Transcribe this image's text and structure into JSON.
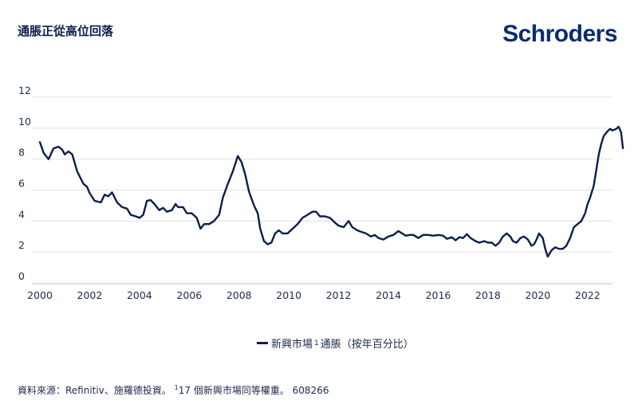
{
  "title": "通脹正從高位回落",
  "logo": "Schroders",
  "legend": {
    "label_before": "新興市場",
    "sup": "1",
    "label_after": "通脹（按年百分比）"
  },
  "source": {
    "before": "資料來源：Refinitiv、施羅德投資。",
    "sup": "1",
    "after": "17 個新興市場同等權重。 608266"
  },
  "colors": {
    "line": "#0b1f4b",
    "grid": "#dcdfe6",
    "text": "#1b2a4a"
  },
  "chart_data": {
    "type": "line",
    "x_tick_labels": [
      "2000",
      "2002",
      "2004",
      "2006",
      "2008",
      "2010",
      "2012",
      "2014",
      "2016",
      "2018",
      "2020",
      "2022"
    ],
    "y_tick_labels": [
      "0",
      "2",
      "4",
      "6",
      "8",
      "10",
      "12"
    ],
    "xlim": [
      2000,
      2023
    ],
    "ylim": [
      0,
      12
    ],
    "grid": true,
    "legend_position": "bottom-center",
    "series": [
      {
        "name": "新興市場 1 通脹（按年百分比）",
        "points": [
          [
            2000.0,
            9.1
          ],
          [
            2000.15,
            8.4
          ],
          [
            2000.35,
            8.0
          ],
          [
            2000.55,
            8.7
          ],
          [
            2000.75,
            8.8
          ],
          [
            2000.9,
            8.6
          ],
          [
            2001.0,
            8.3
          ],
          [
            2001.15,
            8.5
          ],
          [
            2001.3,
            8.3
          ],
          [
            2001.5,
            7.2
          ],
          [
            2001.75,
            6.4
          ],
          [
            2001.9,
            6.2
          ],
          [
            2002.0,
            5.8
          ],
          [
            2002.2,
            5.3
          ],
          [
            2002.45,
            5.2
          ],
          [
            2002.6,
            5.7
          ],
          [
            2002.75,
            5.6
          ],
          [
            2002.9,
            5.85
          ],
          [
            2003.1,
            5.2
          ],
          [
            2003.3,
            4.9
          ],
          [
            2003.5,
            4.8
          ],
          [
            2003.65,
            4.4
          ],
          [
            2003.85,
            4.3
          ],
          [
            2004.0,
            4.2
          ],
          [
            2004.15,
            4.4
          ],
          [
            2004.3,
            5.3
          ],
          [
            2004.45,
            5.35
          ],
          [
            2004.6,
            5.1
          ],
          [
            2004.8,
            4.7
          ],
          [
            2004.95,
            4.85
          ],
          [
            2005.1,
            4.6
          ],
          [
            2005.3,
            4.7
          ],
          [
            2005.45,
            5.1
          ],
          [
            2005.55,
            4.9
          ],
          [
            2005.75,
            4.9
          ],
          [
            2005.9,
            4.5
          ],
          [
            2006.1,
            4.5
          ],
          [
            2006.3,
            4.2
          ],
          [
            2006.45,
            3.5
          ],
          [
            2006.6,
            3.8
          ],
          [
            2006.8,
            3.8
          ],
          [
            2007.0,
            4.0
          ],
          [
            2007.2,
            4.4
          ],
          [
            2007.35,
            5.5
          ],
          [
            2007.55,
            6.4
          ],
          [
            2007.75,
            7.2
          ],
          [
            2007.95,
            8.2
          ],
          [
            2008.1,
            7.8
          ],
          [
            2008.25,
            7.0
          ],
          [
            2008.4,
            5.9
          ],
          [
            2008.6,
            5.0
          ],
          [
            2008.75,
            4.5
          ],
          [
            2008.85,
            3.5
          ],
          [
            2009.0,
            2.7
          ],
          [
            2009.15,
            2.5
          ],
          [
            2009.3,
            2.6
          ],
          [
            2009.45,
            3.2
          ],
          [
            2009.6,
            3.4
          ],
          [
            2009.75,
            3.2
          ],
          [
            2009.95,
            3.2
          ],
          [
            2010.15,
            3.5
          ],
          [
            2010.35,
            3.8
          ],
          [
            2010.55,
            4.2
          ],
          [
            2010.75,
            4.4
          ],
          [
            2010.95,
            4.6
          ],
          [
            2011.1,
            4.6
          ],
          [
            2011.25,
            4.3
          ],
          [
            2011.45,
            4.3
          ],
          [
            2011.65,
            4.2
          ],
          [
            2011.85,
            3.9
          ],
          [
            2012.0,
            3.7
          ],
          [
            2012.2,
            3.6
          ],
          [
            2012.4,
            4.0
          ],
          [
            2012.55,
            3.6
          ],
          [
            2012.75,
            3.4
          ],
          [
            2012.9,
            3.3
          ],
          [
            2013.1,
            3.2
          ],
          [
            2013.3,
            3.0
          ],
          [
            2013.45,
            3.1
          ],
          [
            2013.6,
            2.9
          ],
          [
            2013.8,
            2.8
          ],
          [
            2014.0,
            3.0
          ],
          [
            2014.2,
            3.1
          ],
          [
            2014.4,
            3.35
          ],
          [
            2014.55,
            3.2
          ],
          [
            2014.7,
            3.05
          ],
          [
            2014.85,
            3.1
          ],
          [
            2015.0,
            3.1
          ],
          [
            2015.2,
            2.9
          ],
          [
            2015.4,
            3.1
          ],
          [
            2015.6,
            3.1
          ],
          [
            2015.8,
            3.05
          ],
          [
            2016.0,
            3.1
          ],
          [
            2016.2,
            3.05
          ],
          [
            2016.35,
            2.85
          ],
          [
            2016.55,
            2.95
          ],
          [
            2016.7,
            2.75
          ],
          [
            2016.85,
            2.95
          ],
          [
            2017.0,
            2.9
          ],
          [
            2017.15,
            3.15
          ],
          [
            2017.3,
            2.9
          ],
          [
            2017.5,
            2.7
          ],
          [
            2017.65,
            2.6
          ],
          [
            2017.85,
            2.7
          ],
          [
            2018.0,
            2.6
          ],
          [
            2018.15,
            2.6
          ],
          [
            2018.3,
            2.4
          ],
          [
            2018.45,
            2.6
          ],
          [
            2018.6,
            3.0
          ],
          [
            2018.75,
            3.2
          ],
          [
            2018.9,
            3.0
          ],
          [
            2019.0,
            2.7
          ],
          [
            2019.15,
            2.6
          ],
          [
            2019.3,
            2.9
          ],
          [
            2019.45,
            3.0
          ],
          [
            2019.6,
            2.8
          ],
          [
            2019.75,
            2.4
          ],
          [
            2019.85,
            2.5
          ],
          [
            2019.95,
            2.8
          ],
          [
            2020.05,
            3.2
          ],
          [
            2020.2,
            2.9
          ],
          [
            2020.3,
            2.2
          ],
          [
            2020.4,
            1.7
          ],
          [
            2020.55,
            2.1
          ],
          [
            2020.7,
            2.3
          ],
          [
            2020.85,
            2.2
          ],
          [
            2021.0,
            2.2
          ],
          [
            2021.15,
            2.4
          ],
          [
            2021.3,
            2.9
          ],
          [
            2021.45,
            3.6
          ],
          [
            2021.6,
            3.8
          ],
          [
            2021.75,
            4.0
          ],
          [
            2021.9,
            4.5
          ],
          [
            2022.0,
            5.1
          ],
          [
            2022.1,
            5.5
          ],
          [
            2022.25,
            6.3
          ],
          [
            2022.35,
            7.3
          ],
          [
            2022.45,
            8.3
          ],
          [
            2022.55,
            9.0
          ],
          [
            2022.65,
            9.5
          ],
          [
            2022.8,
            9.8
          ],
          [
            2022.9,
            9.95
          ],
          [
            2023.0,
            9.85
          ],
          [
            2023.15,
            9.95
          ],
          [
            2023.25,
            10.1
          ],
          [
            2023.35,
            9.7
          ],
          [
            2023.42,
            8.7
          ]
        ]
      }
    ]
  }
}
